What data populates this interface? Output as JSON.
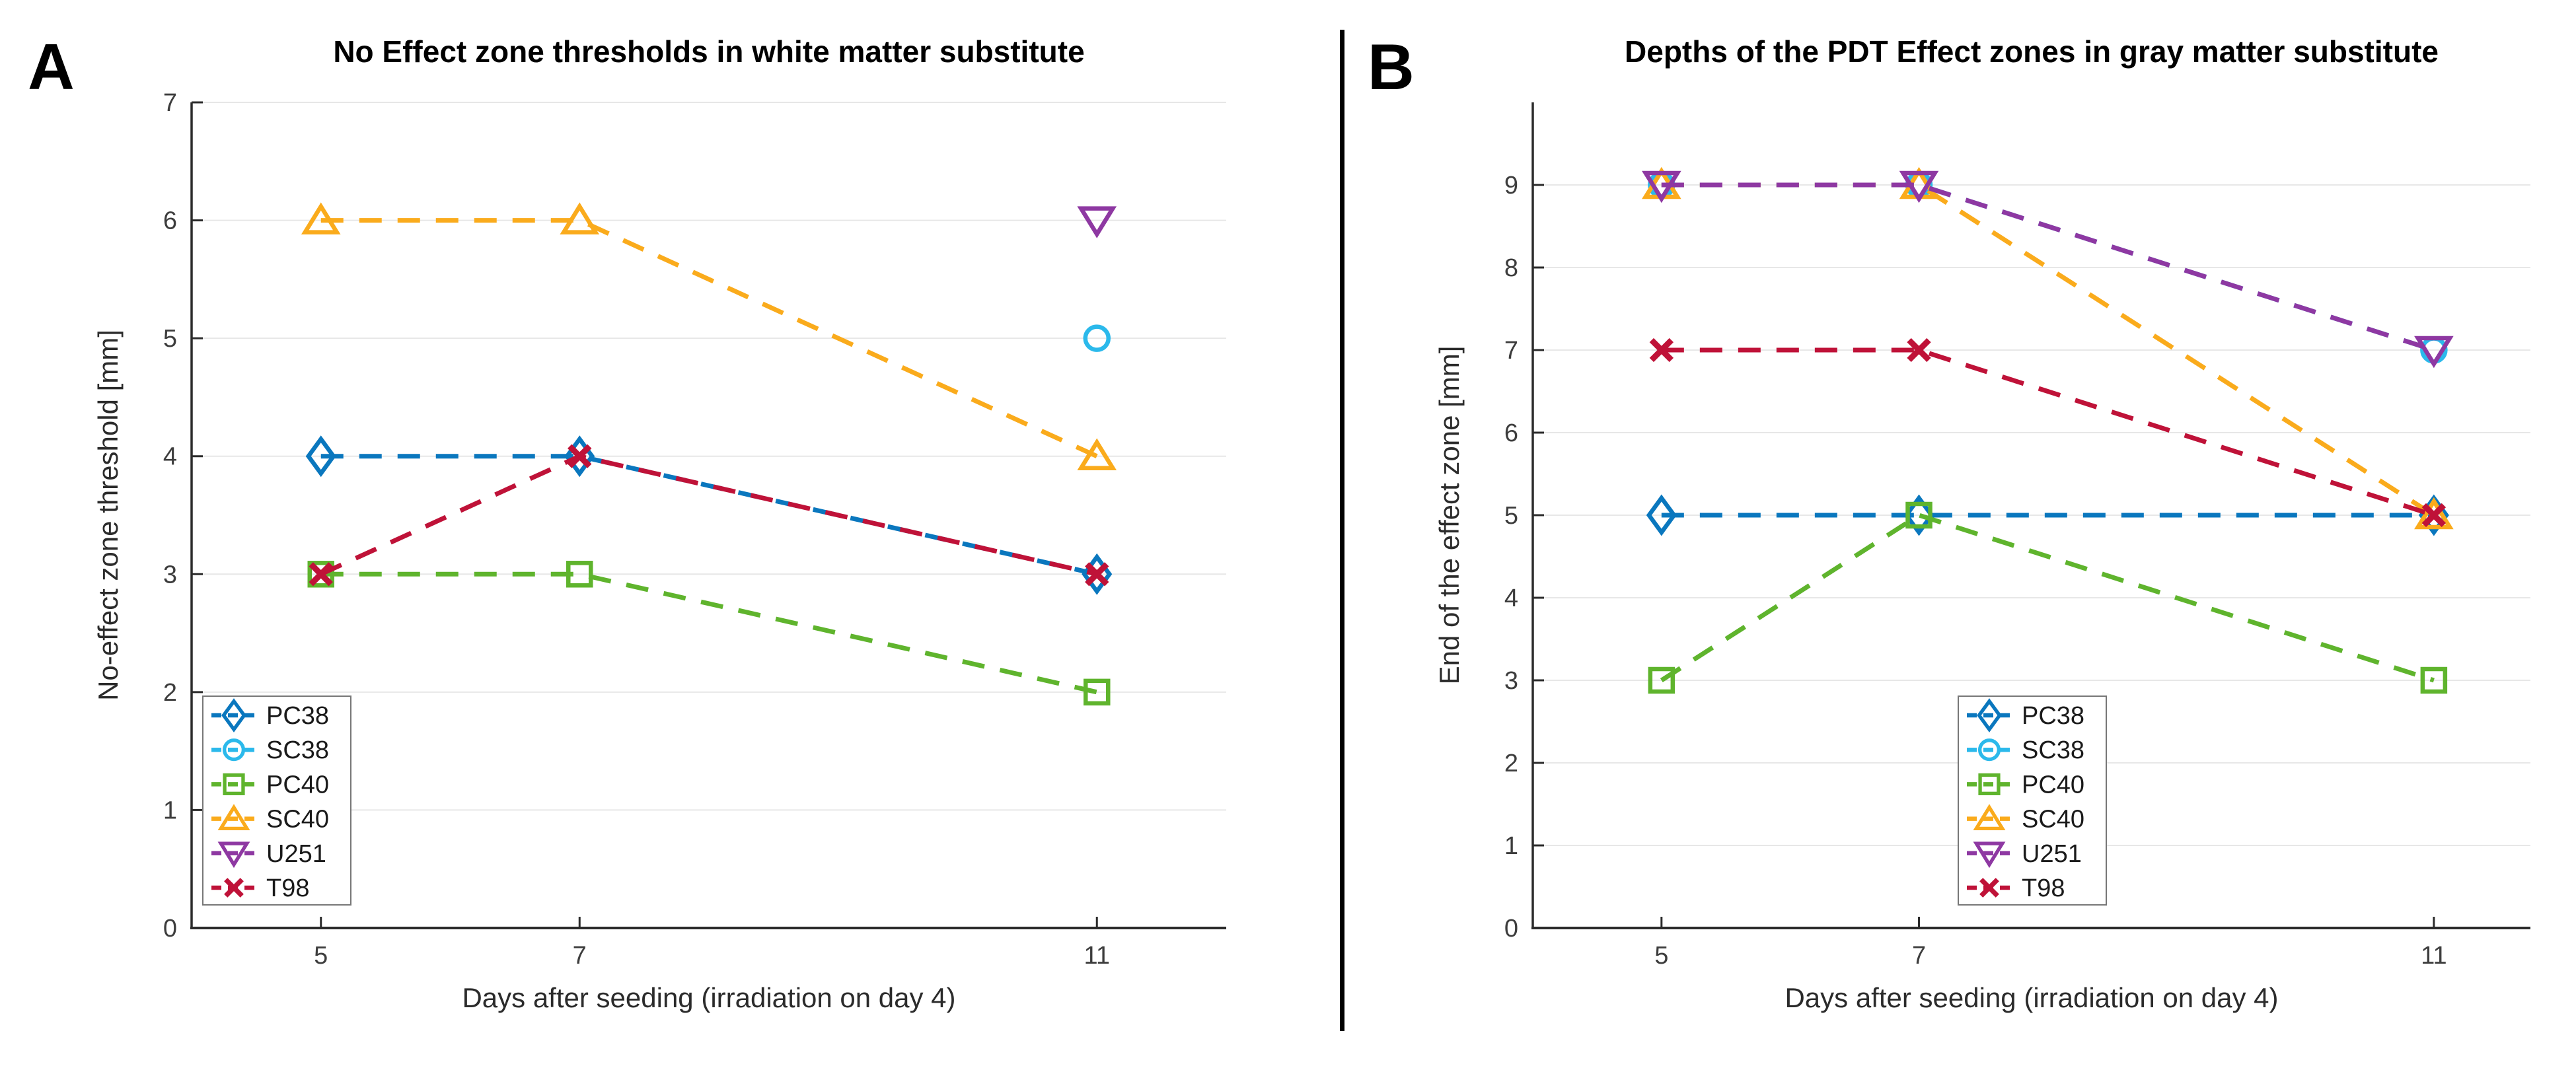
{
  "figure": {
    "background": "#ffffff",
    "divider_color": "#000000"
  },
  "colors": {
    "PC38": "#0A77BE",
    "SC38": "#2BB9EB",
    "PC40": "#5FB42D",
    "SC40": "#FAAB1C",
    "U251": "#8E38A2",
    "T98": "#BF1238",
    "grid": "#E7E7E7",
    "axis": "#2B2B2B",
    "tick_label": "#3D3D3D",
    "title": "#000000",
    "legend_border": "#777777"
  },
  "chart_data": [
    {
      "type": "line",
      "panel_letter": "A",
      "title": "No Effect zone thresholds in white matter substitute",
      "xlabel": "Days after seeding (irradiation on day 4)",
      "ylabel": "No-effect zone threshold [mm]",
      "xlim": [
        4,
        12
      ],
      "ylim": [
        0,
        7
      ],
      "xticks": [
        5,
        7,
        11
      ],
      "yticks": [
        0,
        1,
        2,
        3,
        4,
        5,
        6,
        7
      ],
      "grid": "horizontal",
      "legend_pos": "bottom-left",
      "series": [
        {
          "name": "PC38",
          "color_key": "PC38",
          "marker": "diamond",
          "points": [
            [
              5,
              4
            ],
            [
              7,
              4
            ],
            [
              11,
              3
            ]
          ]
        },
        {
          "name": "SC38",
          "color_key": "SC38",
          "marker": "circle",
          "points": [
            [
              11,
              5
            ]
          ]
        },
        {
          "name": "PC40",
          "color_key": "PC40",
          "marker": "square",
          "points": [
            [
              5,
              3
            ],
            [
              7,
              3
            ],
            [
              11,
              2
            ]
          ]
        },
        {
          "name": "SC40",
          "color_key": "SC40",
          "marker": "triangle-up",
          "points": [
            [
              5,
              6
            ],
            [
              7,
              6
            ],
            [
              11,
              4
            ]
          ]
        },
        {
          "name": "U251",
          "color_key": "U251",
          "marker": "triangle-down",
          "points": [
            [
              11,
              6
            ]
          ]
        },
        {
          "name": "T98",
          "color_key": "T98",
          "marker": "x",
          "points": [
            [
              5,
              3
            ],
            [
              7,
              4
            ],
            [
              11,
              3
            ]
          ]
        }
      ]
    },
    {
      "type": "line",
      "panel_letter": "B",
      "title": "Depths of the PDT Effect zones in gray matter substitute",
      "xlabel": "Days after seeding (irradiation on day 4)",
      "ylabel": "End of the effect zone [mm]",
      "xlim": [
        4,
        11.75
      ],
      "ylim": [
        0,
        10
      ],
      "xticks": [
        5,
        7,
        11
      ],
      "yticks": [
        0,
        1,
        2,
        3,
        4,
        5,
        6,
        7,
        8,
        9
      ],
      "grid": "horizontal",
      "legend_pos": "bottom-center",
      "series": [
        {
          "name": "PC38",
          "color_key": "PC38",
          "marker": "diamond",
          "points": [
            [
              5,
              5
            ],
            [
              7,
              5
            ],
            [
              11,
              5
            ]
          ]
        },
        {
          "name": "SC38",
          "color_key": "SC38",
          "marker": "circle",
          "points": [
            [
              5,
              9
            ],
            [
              7,
              9
            ],
            [
              11,
              7
            ]
          ]
        },
        {
          "name": "PC40",
          "color_key": "PC40",
          "marker": "square",
          "points": [
            [
              5,
              3
            ],
            [
              7,
              5
            ],
            [
              11,
              3
            ]
          ]
        },
        {
          "name": "SC40",
          "color_key": "SC40",
          "marker": "triangle-up",
          "points": [
            [
              5,
              9
            ],
            [
              7,
              9
            ],
            [
              11,
              5
            ]
          ]
        },
        {
          "name": "U251",
          "color_key": "U251",
          "marker": "triangle-down",
          "points": [
            [
              5,
              9
            ],
            [
              7,
              9
            ],
            [
              11,
              7
            ]
          ]
        },
        {
          "name": "T98",
          "color_key": "T98",
          "marker": "x",
          "points": [
            [
              5,
              7
            ],
            [
              7,
              7
            ],
            [
              11,
              5
            ]
          ]
        }
      ]
    }
  ]
}
